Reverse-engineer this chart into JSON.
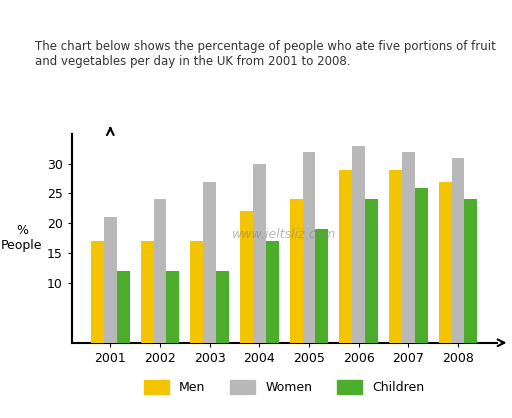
{
  "years": [
    2001,
    2002,
    2003,
    2004,
    2005,
    2006,
    2007,
    2008
  ],
  "men": [
    17,
    17,
    17,
    22,
    24,
    29,
    29,
    27
  ],
  "women": [
    21,
    24,
    27,
    30,
    32,
    33,
    32,
    31
  ],
  "children": [
    12,
    12,
    12,
    17,
    19,
    24,
    26,
    24
  ],
  "men_color": "#F5C400",
  "women_color": "#B8B8B8",
  "children_color": "#4BAD2A",
  "ylabel": "%\nPeople",
  "ylim": [
    0,
    35
  ],
  "yticks": [
    10,
    15,
    20,
    25,
    30
  ],
  "title_text": "The chart below shows the percentage of people who ate five portions of fruit\nand vegetables per day in the UK from 2001 to 2008.",
  "watermark": "www.ieltsliz.com",
  "legend_labels": [
    "Men",
    "Women",
    "Children"
  ],
  "bar_width": 0.26
}
